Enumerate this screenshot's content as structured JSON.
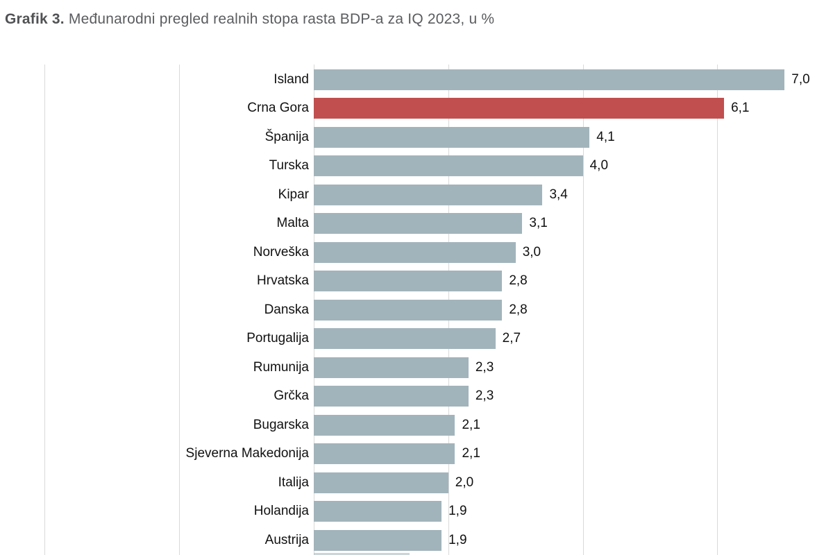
{
  "title": {
    "prefix": "Grafik 3.",
    "text": " Međunarodni pregled realnih stopa rasta BDP-a za IQ 2023, u %"
  },
  "chart_data": {
    "type": "bar",
    "orientation": "horizontal",
    "title": "Grafik 3. Međunarodni pregled realnih stopa rasta BDP-a za IQ 2023, u %",
    "categories": [
      "Island",
      "Crna Gora",
      "Španija",
      "Turska",
      "Kipar",
      "Malta",
      "Norveška",
      "Hrvatska",
      "Danska",
      "Portugalija",
      "Rumunija",
      "Grčka",
      "Bugarska",
      "Sjeverna Makedonija",
      "Italija",
      "Holandija",
      "Austrija"
    ],
    "values": [
      7.0,
      6.1,
      4.1,
      4.0,
      3.4,
      3.1,
      3.0,
      2.8,
      2.8,
      2.7,
      2.3,
      2.3,
      2.1,
      2.1,
      2.0,
      1.9,
      1.9
    ],
    "value_labels": [
      "7,0",
      "6,1",
      "4,1",
      "4,0",
      "3,4",
      "3,1",
      "3,0",
      "2,8",
      "2,8",
      "2,7",
      "2,3",
      "2,3",
      "2,1",
      "2,1",
      "2,0",
      "1,9",
      "1,9"
    ],
    "highlighted_category": "Crna Gora",
    "xlim": [
      -4,
      7.7
    ],
    "gridline_values": [
      -4,
      -2,
      0,
      2,
      4,
      6
    ],
    "grid": true,
    "legend": false,
    "xlabel": "",
    "ylabel": "",
    "colors": {
      "bar": "#a2b4bb",
      "highlight": "#c14f4f",
      "gridline": "#d9d9d9",
      "title": "#5b5c5f",
      "label": "#111111"
    }
  }
}
